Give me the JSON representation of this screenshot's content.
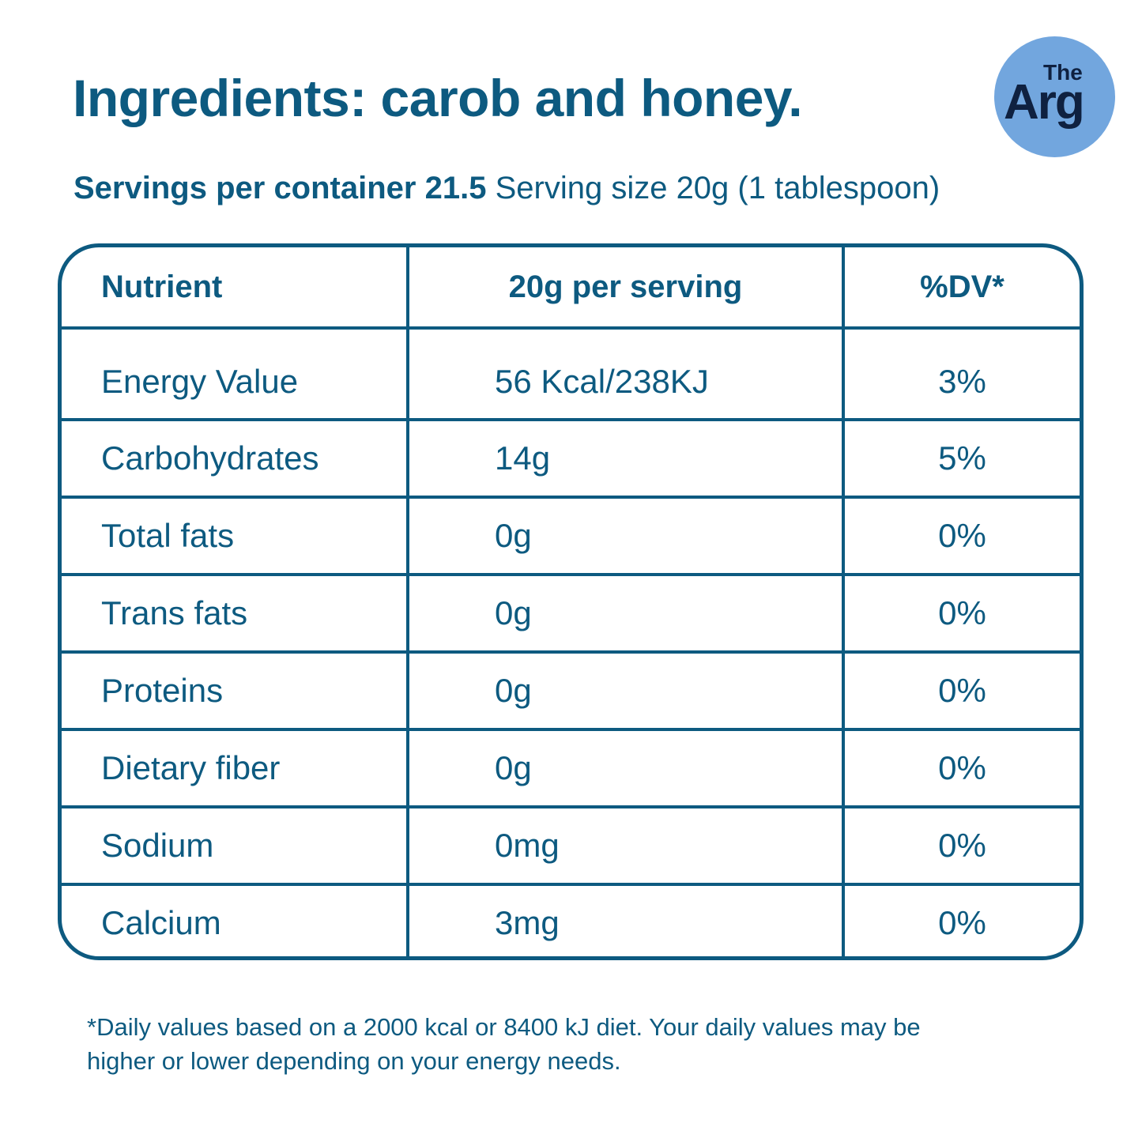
{
  "header": {
    "title": "Ingredients: carob and honey.",
    "servings_label": "Servings per container 21.5",
    "serving_size": "Serving size 20g (1 tablespoon)"
  },
  "logo": {
    "line1": "The",
    "line2": "Arg"
  },
  "table": {
    "columns": [
      "Nutrient",
      "20g per serving",
      "%DV*"
    ],
    "rows": [
      [
        "Energy Value",
        "56 Kcal/238KJ",
        "3%"
      ],
      [
        "Carbohydrates",
        "14g",
        "5%"
      ],
      [
        "Total fats",
        "0g",
        "0%"
      ],
      [
        "Trans fats",
        "0g",
        "0%"
      ],
      [
        "Proteins",
        "0g",
        "0%"
      ],
      [
        "Dietary fiber",
        "0g",
        "0%"
      ],
      [
        "Sodium",
        "0mg",
        "0%"
      ],
      [
        "Calcium",
        "3mg",
        "0%"
      ]
    ]
  },
  "footnote": [
    "*Daily values based on a 2000 kcal or 8400 kJ diet. Your daily values may be",
    "higher or lower depending on your energy needs."
  ]
}
